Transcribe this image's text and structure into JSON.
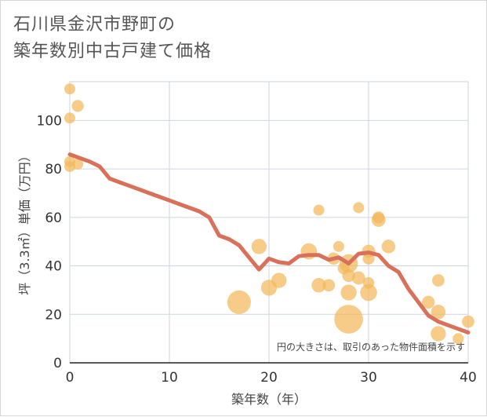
{
  "title_line1": "石川県金沢市野町の",
  "title_line2": "築年数別中古戸建て価格",
  "chart_data": {
    "type": "scatter",
    "title": "石川県金沢市野町の築年数別中古戸建て価格",
    "xlabel": "築年数（年）",
    "ylabel": "坪（3.3㎡）単価（万円）",
    "xlim": [
      0,
      40
    ],
    "ylim": [
      0,
      116
    ],
    "x_ticks": [
      0,
      10,
      20,
      30,
      40
    ],
    "y_ticks": [
      0,
      20,
      40,
      60,
      80,
      100
    ],
    "grid": true,
    "note": "円の大きさは、取引のあった物件面積を示す",
    "colors": {
      "bubble": "#f3b85a",
      "line": "#d9705a",
      "grid": "#cdd6e0"
    },
    "points": [
      {
        "x": 0,
        "y": 113,
        "size": 1
      },
      {
        "x": 0,
        "y": 101,
        "size": 1
      },
      {
        "x": 0.8,
        "y": 106,
        "size": 1.2
      },
      {
        "x": 0,
        "y": 83,
        "size": 1
      },
      {
        "x": 0,
        "y": 81,
        "size": 1
      },
      {
        "x": 0.8,
        "y": 82,
        "size": 1
      },
      {
        "x": 17,
        "y": 25,
        "size": 5
      },
      {
        "x": 19,
        "y": 48,
        "size": 2
      },
      {
        "x": 20,
        "y": 31,
        "size": 2.2
      },
      {
        "x": 21,
        "y": 34,
        "size": 2
      },
      {
        "x": 24,
        "y": 46,
        "size": 2.3
      },
      {
        "x": 25,
        "y": 63,
        "size": 1
      },
      {
        "x": 25,
        "y": 32,
        "size": 1.8
      },
      {
        "x": 26,
        "y": 32,
        "size": 1.3
      },
      {
        "x": 26.5,
        "y": 43,
        "size": 1.3
      },
      {
        "x": 27,
        "y": 48,
        "size": 1
      },
      {
        "x": 27.5,
        "y": 39,
        "size": 1.2
      },
      {
        "x": 28,
        "y": 41,
        "size": 3
      },
      {
        "x": 28,
        "y": 36,
        "size": 1.4
      },
      {
        "x": 28,
        "y": 29,
        "size": 2.2
      },
      {
        "x": 28,
        "y": 18,
        "size": 7.5
      },
      {
        "x": 29,
        "y": 64,
        "size": 1
      },
      {
        "x": 29,
        "y": 35,
        "size": 1.5
      },
      {
        "x": 30,
        "y": 46,
        "size": 1.5
      },
      {
        "x": 30,
        "y": 43,
        "size": 1.2
      },
      {
        "x": 30,
        "y": 33,
        "size": 1.1
      },
      {
        "x": 30,
        "y": 29,
        "size": 2.5
      },
      {
        "x": 31,
        "y": 60,
        "size": 1.2
      },
      {
        "x": 31,
        "y": 59,
        "size": 1.7
      },
      {
        "x": 32,
        "y": 48,
        "size": 1.6
      },
      {
        "x": 36,
        "y": 25,
        "size": 1.4
      },
      {
        "x": 37,
        "y": 34,
        "size": 1.3
      },
      {
        "x": 37,
        "y": 21,
        "size": 1.8
      },
      {
        "x": 37,
        "y": 12,
        "size": 2
      },
      {
        "x": 39,
        "y": 10,
        "size": 1
      },
      {
        "x": 40,
        "y": 17,
        "size": 1.3
      }
    ],
    "trend_line": {
      "x": [
        0,
        1,
        2,
        3,
        4,
        5,
        6,
        7,
        8,
        9,
        10,
        11,
        12,
        13,
        14,
        15,
        16,
        17,
        18,
        19,
        20,
        21,
        22,
        23,
        24,
        25,
        26,
        27,
        28,
        29,
        30,
        31,
        32,
        33,
        34,
        35,
        36,
        37,
        38,
        39,
        40
      ],
      "y": [
        86,
        84.5,
        83,
        81,
        76,
        74.5,
        73,
        71.5,
        70,
        68.5,
        67,
        65.5,
        64,
        62.5,
        60,
        52.5,
        51,
        48.5,
        43.5,
        38.5,
        43,
        41.5,
        41,
        44,
        44.5,
        44.5,
        42.5,
        43.5,
        41,
        45,
        45.5,
        44.5,
        40,
        37.5,
        30.5,
        25,
        19.5,
        17,
        15.5,
        14,
        12.5
      ]
    }
  }
}
